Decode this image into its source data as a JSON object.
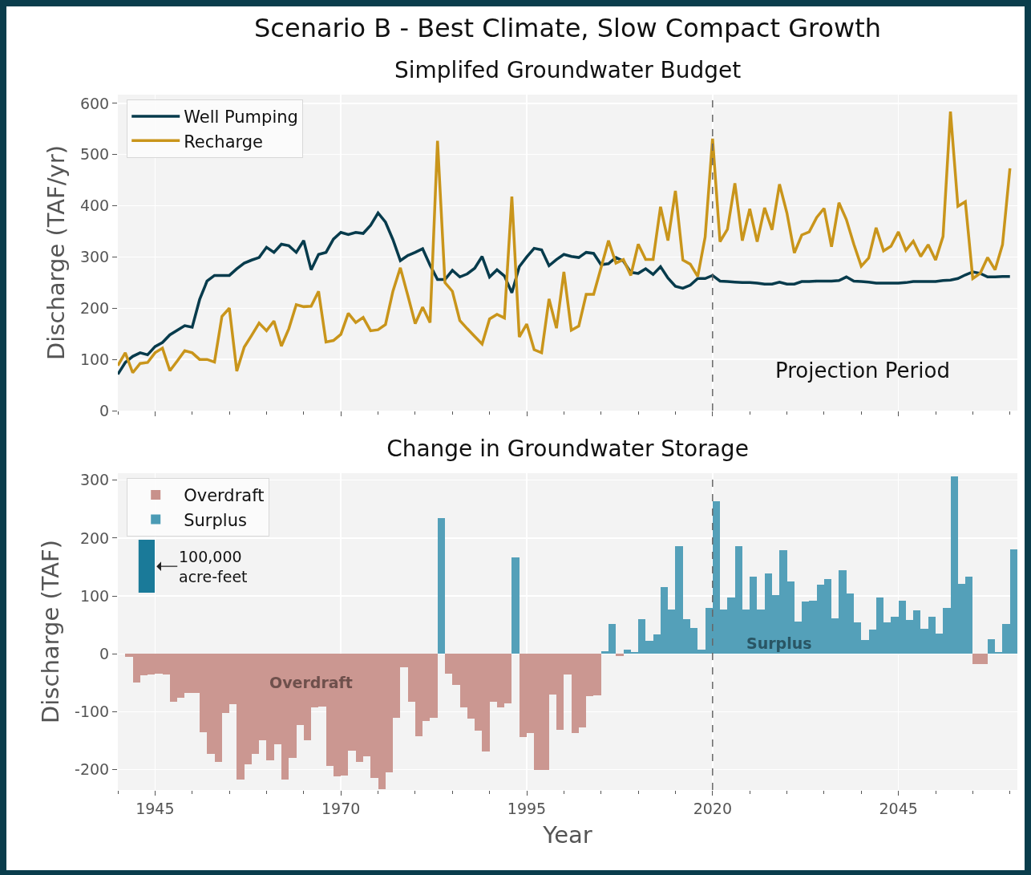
{
  "chart_data": [
    {
      "type": "line",
      "title": "Scenario B - Best Climate, Slow Compact Growth",
      "subtitle": "Simplifed Groundwater Budget",
      "ylabel": "Discharge (TAF/yr)",
      "x": [
        1940,
        1941,
        1942,
        1943,
        1944,
        1945,
        1946,
        1947,
        1948,
        1949,
        1950,
        1951,
        1952,
        1953,
        1954,
        1955,
        1956,
        1957,
        1958,
        1959,
        1960,
        1961,
        1962,
        1963,
        1964,
        1965,
        1966,
        1967,
        1968,
        1969,
        1970,
        1971,
        1972,
        1973,
        1974,
        1975,
        1976,
        1977,
        1978,
        1979,
        1980,
        1981,
        1982,
        1983,
        1984,
        1985,
        1986,
        1987,
        1988,
        1989,
        1990,
        1991,
        1992,
        1993,
        1994,
        1995,
        1996,
        1997,
        1998,
        1999,
        2000,
        2001,
        2002,
        2003,
        2004,
        2005,
        2006,
        2007,
        2008,
        2009,
        2010,
        2011,
        2012,
        2013,
        2014,
        2015,
        2016,
        2017,
        2018,
        2019,
        2020,
        2021,
        2022,
        2023,
        2024,
        2025,
        2026,
        2027,
        2028,
        2029,
        2030,
        2031,
        2032,
        2033,
        2034,
        2035,
        2036,
        2037,
        2038,
        2039,
        2040,
        2041,
        2042,
        2043,
        2044,
        2045,
        2046,
        2047,
        2048,
        2049,
        2050,
        2051,
        2052,
        2053,
        2054,
        2055,
        2056,
        2057,
        2058,
        2059,
        2060
      ],
      "series": [
        {
          "name": "Well Pumping",
          "color": "#073b4c",
          "values": [
            71,
            94,
            106,
            113,
            109,
            125,
            133,
            148,
            157,
            166,
            163,
            217,
            253,
            264,
            264,
            264,
            277,
            288,
            294,
            299,
            319,
            309,
            325,
            322,
            309,
            332,
            275,
            305,
            309,
            335,
            348,
            344,
            348,
            346,
            362,
            386,
            368,
            334,
            293,
            303,
            309,
            316,
            284,
            256,
            256,
            274,
            261,
            267,
            278,
            301,
            261,
            275,
            263,
            230,
            281,
            300,
            317,
            314,
            283,
            295,
            305,
            301,
            299,
            309,
            307,
            285,
            287,
            299,
            292,
            270,
            268,
            277,
            266,
            281,
            259,
            243,
            239,
            245,
            258,
            258,
            264,
            253,
            252,
            251,
            250,
            250,
            249,
            247,
            247,
            251,
            247,
            247,
            252,
            252,
            253,
            253,
            253,
            254,
            261,
            253,
            252,
            251,
            249,
            249,
            249,
            249,
            250,
            252,
            252,
            252,
            252,
            254,
            255,
            258,
            265,
            271,
            268,
            261,
            261,
            262,
            262
          ]
        },
        {
          "name": "Recharge",
          "color": "#c9951b",
          "values": [
            88,
            113,
            74,
            92,
            94,
            113,
            122,
            78,
            97,
            117,
            113,
            100,
            100,
            95,
            184,
            200,
            77,
            124,
            147,
            171,
            156,
            175,
            126,
            160,
            207,
            203,
            204,
            233,
            134,
            137,
            149,
            190,
            172,
            182,
            156,
            158,
            168,
            233,
            279,
            225,
            170,
            202,
            172,
            527,
            250,
            233,
            176,
            160,
            145,
            130,
            179,
            188,
            181,
            418,
            144,
            169,
            119,
            113,
            218,
            161,
            271,
            157,
            165,
            227,
            227,
            279,
            332,
            288,
            295,
            264,
            325,
            295,
            295,
            398,
            332,
            429,
            294,
            286,
            262,
            339,
            531,
            330,
            354,
            444,
            332,
            394,
            330,
            396,
            353,
            442,
            386,
            308,
            343,
            349,
            377,
            395,
            320,
            406,
            373,
            325,
            282,
            298,
            357,
            312,
            321,
            349,
            313,
            331,
            301,
            324,
            294,
            340,
            584,
            399,
            408,
            258,
            268,
            299,
            275,
            324,
            473
          ]
        }
      ],
      "xlim": [
        1940,
        2061
      ],
      "xticks": [
        {
          "value": 1940,
          "label": null
        },
        1945,
        {
          "value": 1950,
          "label": null
        },
        {
          "value": 1955,
          "label": null
        },
        {
          "value": 1960,
          "label": null
        },
        {
          "value": 1965,
          "label": null
        },
        1970,
        {
          "value": 1975,
          "label": null
        },
        {
          "value": 1980,
          "label": null
        },
        {
          "value": 1985,
          "label": null
        },
        {
          "value": 1990,
          "label": null
        },
        1995,
        {
          "value": 2000,
          "label": null
        },
        {
          "value": 2005,
          "label": null
        },
        {
          "value": 2010,
          "label": null
        },
        {
          "value": 2015,
          "label": null
        },
        2020,
        {
          "value": 2025,
          "label": null
        },
        {
          "value": 2030,
          "label": null
        },
        {
          "value": 2035,
          "label": null
        },
        {
          "value": 2040,
          "label": null
        },
        2045,
        {
          "value": 2050,
          "label": null
        },
        {
          "value": 2055,
          "label": null
        },
        {
          "value": 2060,
          "label": null
        }
      ],
      "ylim": [
        0,
        617
      ],
      "yticks": [
        0,
        100,
        200,
        300,
        400,
        500,
        600
      ],
      "tick_labels": "y",
      "grid": true,
      "legend": "top left",
      "ref_lines": [
        {
          "axis": "x",
          "value": 2020,
          "color": "#666666",
          "line_style": "dashed"
        }
      ],
      "annotations": [
        "Projection Period"
      ]
    },
    {
      "type": "bar",
      "title": "Change in Groundwater Storage",
      "xlabel": "Year",
      "ylabel": "Discharge (TAF)",
      "x": [
        1941,
        1942,
        1943,
        1944,
        1945,
        1946,
        1947,
        1948,
        1949,
        1950,
        1951,
        1952,
        1953,
        1954,
        1955,
        1956,
        1957,
        1958,
        1959,
        1960,
        1961,
        1962,
        1963,
        1964,
        1965,
        1966,
        1967,
        1968,
        1969,
        1970,
        1971,
        1972,
        1973,
        1974,
        1975,
        1976,
        1977,
        1978,
        1979,
        1980,
        1981,
        1982,
        1983,
        1984,
        1985,
        1986,
        1987,
        1988,
        1989,
        1990,
        1991,
        1992,
        1993,
        1994,
        1995,
        1996,
        1997,
        1998,
        1999,
        2000,
        2001,
        2002,
        2003,
        2004,
        2005,
        2006,
        2007,
        2008,
        2009,
        2010,
        2011,
        2012,
        2013,
        2014,
        2015,
        2016,
        2017,
        2018,
        2019,
        2020,
        2021,
        2022,
        2023,
        2024,
        2025,
        2026,
        2027,
        2028,
        2029,
        2030,
        2031,
        2032,
        2033,
        2034,
        2035,
        2036,
        2037,
        2038,
        2039,
        2040,
        2041,
        2042,
        2043,
        2044,
        2045,
        2046,
        2047,
        2048,
        2049,
        2050,
        2051,
        2052,
        2053,
        2054,
        2055,
        2056,
        2057,
        2058,
        2059,
        2060
      ],
      "series": [
        {
          "name": "Overdraft",
          "color": "#c8918b",
          "values": [
            -5,
            -49,
            -37,
            -35,
            -34,
            -35,
            -83,
            -76,
            -68,
            -67,
            -135,
            -173,
            -186,
            -102,
            -87,
            -217,
            -191,
            -172,
            -149,
            -184,
            -156,
            -217,
            -180,
            -123,
            -149,
            -93,
            -91,
            -193,
            -212,
            -210,
            -167,
            -187,
            -177,
            -214,
            -233,
            -204,
            -110,
            -23,
            -83,
            -142,
            -116,
            -110,
            null,
            -34,
            -53,
            -93,
            -112,
            -133,
            -169,
            -83,
            -93,
            -85,
            null,
            -143,
            -136,
            -200,
            -200,
            -70,
            -131,
            -36,
            -136,
            -127,
            -73,
            -71,
            null,
            null,
            -4,
            null,
            null,
            null,
            null,
            null,
            null,
            null,
            null,
            null,
            null,
            null,
            null,
            null,
            null,
            null,
            null,
            null,
            null,
            null,
            null,
            null,
            null,
            null,
            null,
            null,
            null,
            null,
            null,
            null,
            null,
            null,
            null,
            null,
            null,
            null,
            null,
            null,
            null,
            null,
            null,
            null,
            null,
            null,
            null,
            null,
            null,
            null,
            -18,
            -17,
            null,
            null,
            null,
            null
          ]
        },
        {
          "name": "Surplus",
          "color": "#4b9bb5",
          "values": [
            null,
            null,
            null,
            null,
            null,
            null,
            null,
            null,
            null,
            null,
            null,
            null,
            null,
            null,
            null,
            null,
            null,
            null,
            null,
            null,
            null,
            null,
            null,
            null,
            null,
            null,
            null,
            null,
            null,
            null,
            null,
            null,
            null,
            null,
            null,
            null,
            null,
            null,
            null,
            null,
            null,
            null,
            234,
            null,
            null,
            null,
            null,
            null,
            null,
            null,
            null,
            null,
            166,
            null,
            null,
            null,
            null,
            null,
            null,
            null,
            null,
            null,
            null,
            null,
            4,
            51,
            null,
            8,
            3,
            60,
            22,
            34,
            116,
            77,
            186,
            60,
            45,
            7,
            80,
            263,
            77,
            97,
            186,
            77,
            133,
            77,
            139,
            102,
            179,
            125,
            56,
            91,
            92,
            119,
            129,
            62,
            144,
            104,
            54,
            24,
            42,
            98,
            55,
            64,
            92,
            59,
            75,
            44,
            64,
            35,
            80,
            306,
            121,
            133,
            null,
            null,
            26,
            3,
            51,
            181
          ]
        }
      ],
      "xlim": [
        1940,
        2061
      ],
      "xticks": [
        {
          "value": 1940,
          "label": null
        },
        1945,
        {
          "value": 1950,
          "label": null
        },
        {
          "value": 1955,
          "label": null
        },
        {
          "value": 1960,
          "label": null
        },
        {
          "value": 1965,
          "label": null
        },
        1970,
        {
          "value": 1975,
          "label": null
        },
        {
          "value": 1980,
          "label": null
        },
        {
          "value": 1985,
          "label": null
        },
        {
          "value": 1990,
          "label": null
        },
        1995,
        {
          "value": 2000,
          "label": null
        },
        {
          "value": 2005,
          "label": null
        },
        {
          "value": 2010,
          "label": null
        },
        {
          "value": 2015,
          "label": null
        },
        2020,
        {
          "value": 2025,
          "label": null
        },
        {
          "value": 2030,
          "label": null
        },
        {
          "value": 2035,
          "label": null
        },
        {
          "value": 2040,
          "label": null
        },
        2045,
        {
          "value": 2050,
          "label": null
        },
        {
          "value": 2055,
          "label": null
        },
        {
          "value": 2060,
          "label": null
        }
      ],
      "ylim": [
        -235,
        312
      ],
      "yticks": [
        -200,
        -100,
        0,
        100,
        200,
        300
      ],
      "grid": true,
      "legend": "top left",
      "ref_lines": [
        {
          "axis": "x",
          "value": 2020,
          "color": "#666666",
          "line_style": "dashed"
        }
      ],
      "annotations": [
        {
          "text": "Overdraft",
          "x": 1966,
          "y": -49
        },
        {
          "text": "Surplus",
          "x": 2029,
          "y": 19
        },
        "100,000\nacre-feet"
      ]
    }
  ]
}
